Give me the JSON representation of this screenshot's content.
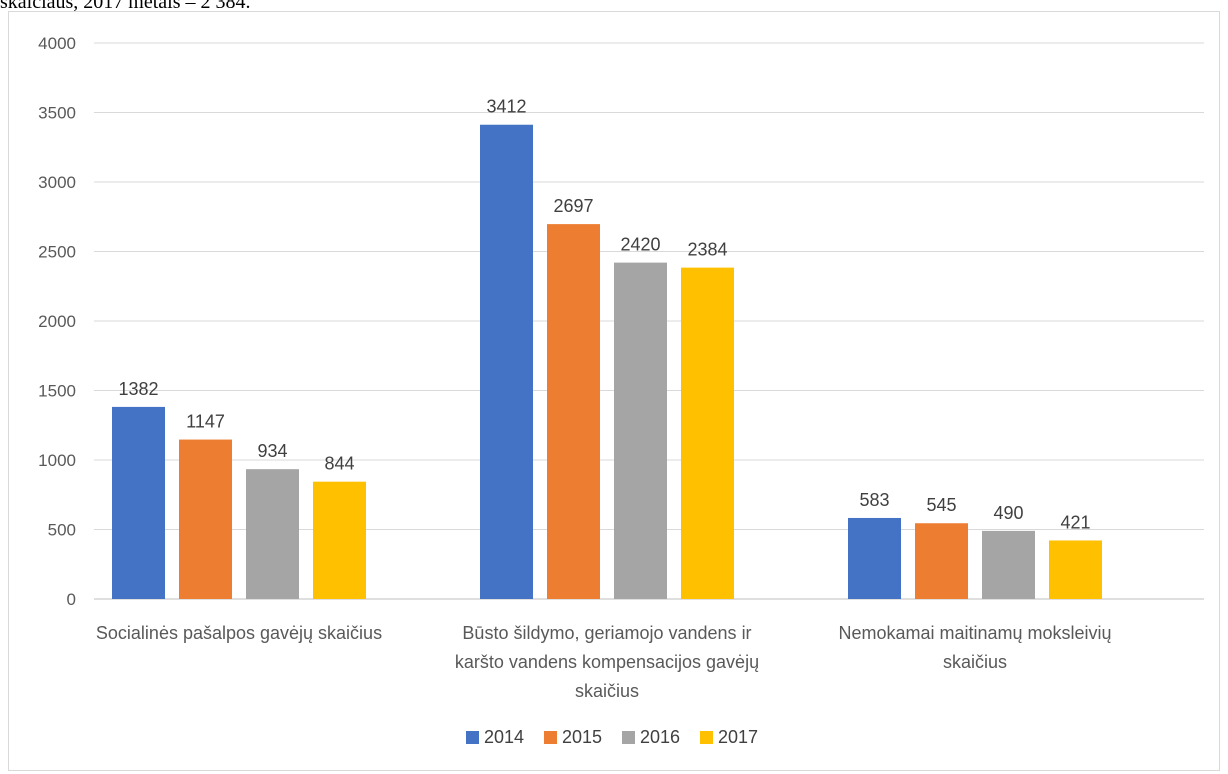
{
  "page": {
    "top_text": "skaičiaus, 2017 metais – 2 384."
  },
  "chart_data": {
    "type": "bar",
    "title": "",
    "xlabel": "",
    "ylabel": "",
    "ylim": [
      0,
      4000
    ],
    "yticks": [
      0,
      500,
      1000,
      1500,
      2000,
      2500,
      3000,
      3500,
      4000
    ],
    "grid": true,
    "legend_position": "bottom",
    "categories": [
      [
        "Socialinės pašalpos gavėjų skaičius"
      ],
      [
        "Būsto šildymo, geriamojo vandens ir",
        "karšto vandens kompensacijos gavėjų",
        "skaičius"
      ],
      [
        "Nemokamai maitinamų moksleivių",
        "skaičius"
      ]
    ],
    "series": [
      {
        "name": "2014",
        "color": "#4472c4",
        "values": [
          1382,
          3412,
          583
        ]
      },
      {
        "name": "2015",
        "color": "#ed7d31",
        "values": [
          1147,
          2697,
          545
        ]
      },
      {
        "name": "2016",
        "color": "#a5a5a5",
        "values": [
          934,
          2420,
          490
        ]
      },
      {
        "name": "2017",
        "color": "#ffc000",
        "values": [
          844,
          2384,
          421
        ]
      }
    ]
  }
}
